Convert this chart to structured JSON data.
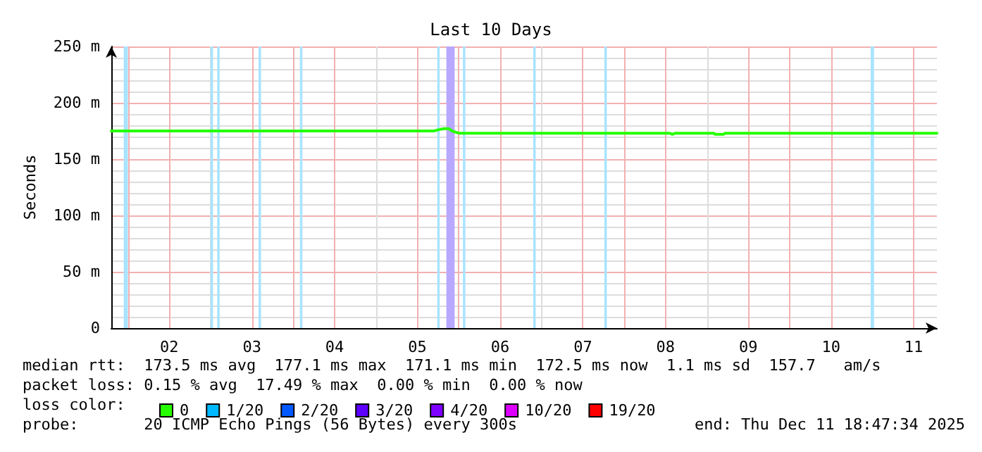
{
  "chart_data": {
    "type": "line",
    "title": "Last 10 Days",
    "ylabel": "Seconds",
    "legend_title": "loss color:",
    "x": [
      1.8,
      5.7,
      5.75,
      5.82,
      5.88,
      5.92,
      5.96,
      6.0,
      8.55,
      8.58,
      8.62,
      9.08,
      9.1,
      9.2,
      9.22,
      11.78
    ],
    "series": [
      {
        "name": "0",
        "color": "#26ff00",
        "values": [
          175,
          175,
          176,
          177,
          177,
          175,
          174,
          173,
          173,
          172,
          173,
          173,
          172,
          172,
          173,
          173
        ]
      },
      {
        "name": "1/20",
        "color": "#00b8ff",
        "values": [
          null,
          null,
          null,
          null,
          null,
          null,
          null,
          null,
          null,
          null,
          null,
          null,
          null,
          null,
          null,
          null
        ]
      },
      {
        "name": "2/20",
        "color": "#0059ff",
        "values": [
          null,
          null,
          null,
          null,
          null,
          null,
          null,
          null,
          null,
          null,
          null,
          null,
          null,
          null,
          null,
          null
        ]
      },
      {
        "name": "3/20",
        "color": "#5e00ff",
        "values": [
          null,
          null,
          null,
          null,
          null,
          null,
          null,
          null,
          null,
          null,
          null,
          null,
          null,
          null,
          null,
          null
        ]
      },
      {
        "name": "4/20",
        "color": "#7e00ff",
        "values": [
          null,
          null,
          null,
          null,
          null,
          null,
          null,
          null,
          null,
          null,
          null,
          null,
          null,
          null,
          null,
          null
        ]
      },
      {
        "name": "10/20",
        "color": "#dd00ff",
        "values": [
          null,
          null,
          null,
          null,
          null,
          null,
          null,
          null,
          null,
          null,
          null,
          null,
          null,
          null,
          null,
          null
        ]
      },
      {
        "name": "19/20",
        "color": "#ff0000",
        "values": [
          null,
          null,
          null,
          null,
          null,
          null,
          null,
          null,
          null,
          null,
          null,
          null,
          null,
          null,
          null,
          null
        ]
      }
    ],
    "xlim": [
      1.8,
      11.78
    ],
    "xticks": [
      {
        "value": 2,
        "label": null
      },
      {
        "value": 2.5,
        "label": "02"
      },
      {
        "value": 3,
        "label": null
      },
      {
        "value": 3.5,
        "label": "03"
      },
      {
        "value": 4,
        "label": null
      },
      {
        "value": 4.5,
        "label": "04"
      },
      {
        "value": 5,
        "label": null
      },
      {
        "value": 5.5,
        "label": "05"
      },
      {
        "value": 6,
        "label": null
      },
      {
        "value": 6.5,
        "label": "06"
      },
      {
        "value": 7,
        "label": null
      },
      {
        "value": 7.5,
        "label": "07"
      },
      {
        "value": 8,
        "label": null
      },
      {
        "value": 8.5,
        "label": "08"
      },
      {
        "value": 9,
        "label": null
      },
      {
        "value": 9.5,
        "label": "09"
      },
      {
        "value": 10,
        "label": null
      },
      {
        "value": 10.5,
        "label": "10"
      },
      {
        "value": 11,
        "label": null
      },
      {
        "value": 11.5,
        "label": "11"
      }
    ],
    "ylim": [
      0,
      250
    ],
    "yticks": [
      0,
      {
        "value": 50,
        "label": "50 m"
      },
      {
        "value": 100,
        "label": "100 m"
      },
      {
        "value": 150,
        "label": "150 m"
      },
      {
        "value": 200,
        "label": "200 m"
      },
      {
        "value": 250,
        "label": "250 m"
      }
    ],
    "bands": [
      {
        "axis": "x",
        "from": 1.95,
        "to": 2.0,
        "label": null,
        "color": "#a8e4ff"
      },
      {
        "axis": "x",
        "from": 3.0,
        "to": 3.03,
        "label": null,
        "color": "#a8e4ff"
      },
      {
        "axis": "x",
        "from": 3.08,
        "to": 3.11,
        "label": null,
        "color": "#a8e4ff"
      },
      {
        "axis": "x",
        "from": 3.58,
        "to": 3.61,
        "label": null,
        "color": "#a8e4ff"
      },
      {
        "axis": "x",
        "from": 4.08,
        "to": 4.11,
        "label": null,
        "color": "#a8e4ff"
      },
      {
        "axis": "x",
        "from": 5.74,
        "to": 5.77,
        "label": null,
        "color": "#a8e4ff"
      },
      {
        "axis": "x",
        "from": 5.85,
        "to": 5.95,
        "label": null,
        "color": "#b8a8ff"
      },
      {
        "axis": "x",
        "from": 6.05,
        "to": 6.08,
        "label": null,
        "color": "#a8e4ff"
      },
      {
        "axis": "x",
        "from": 6.9,
        "to": 6.93,
        "label": null,
        "color": "#a8e4ff"
      },
      {
        "axis": "x",
        "from": 7.76,
        "to": 7.79,
        "label": null,
        "color": "#a8e4ff"
      },
      {
        "axis": "x",
        "from": 10.98,
        "to": 11.02,
        "label": null,
        "color": "#a8e4ff"
      }
    ],
    "annotations": [
      "median rtt:  173.5 ms avg  177.1 ms max  171.1 ms min  172.5 ms now  1.1 ms sd  157.7   am/s",
      "packet loss: 0.15 % avg  17.49 % max  0.00 % min  0.00 % now",
      "probe:       20 ICMP Echo Pings (56 Bytes) every 300s",
      "end: Thu Dec 11 18:47:34 2025"
    ],
    "grid": true,
    "legend": "bottom",
    "marker": "none",
    "line_style": "solid"
  }
}
